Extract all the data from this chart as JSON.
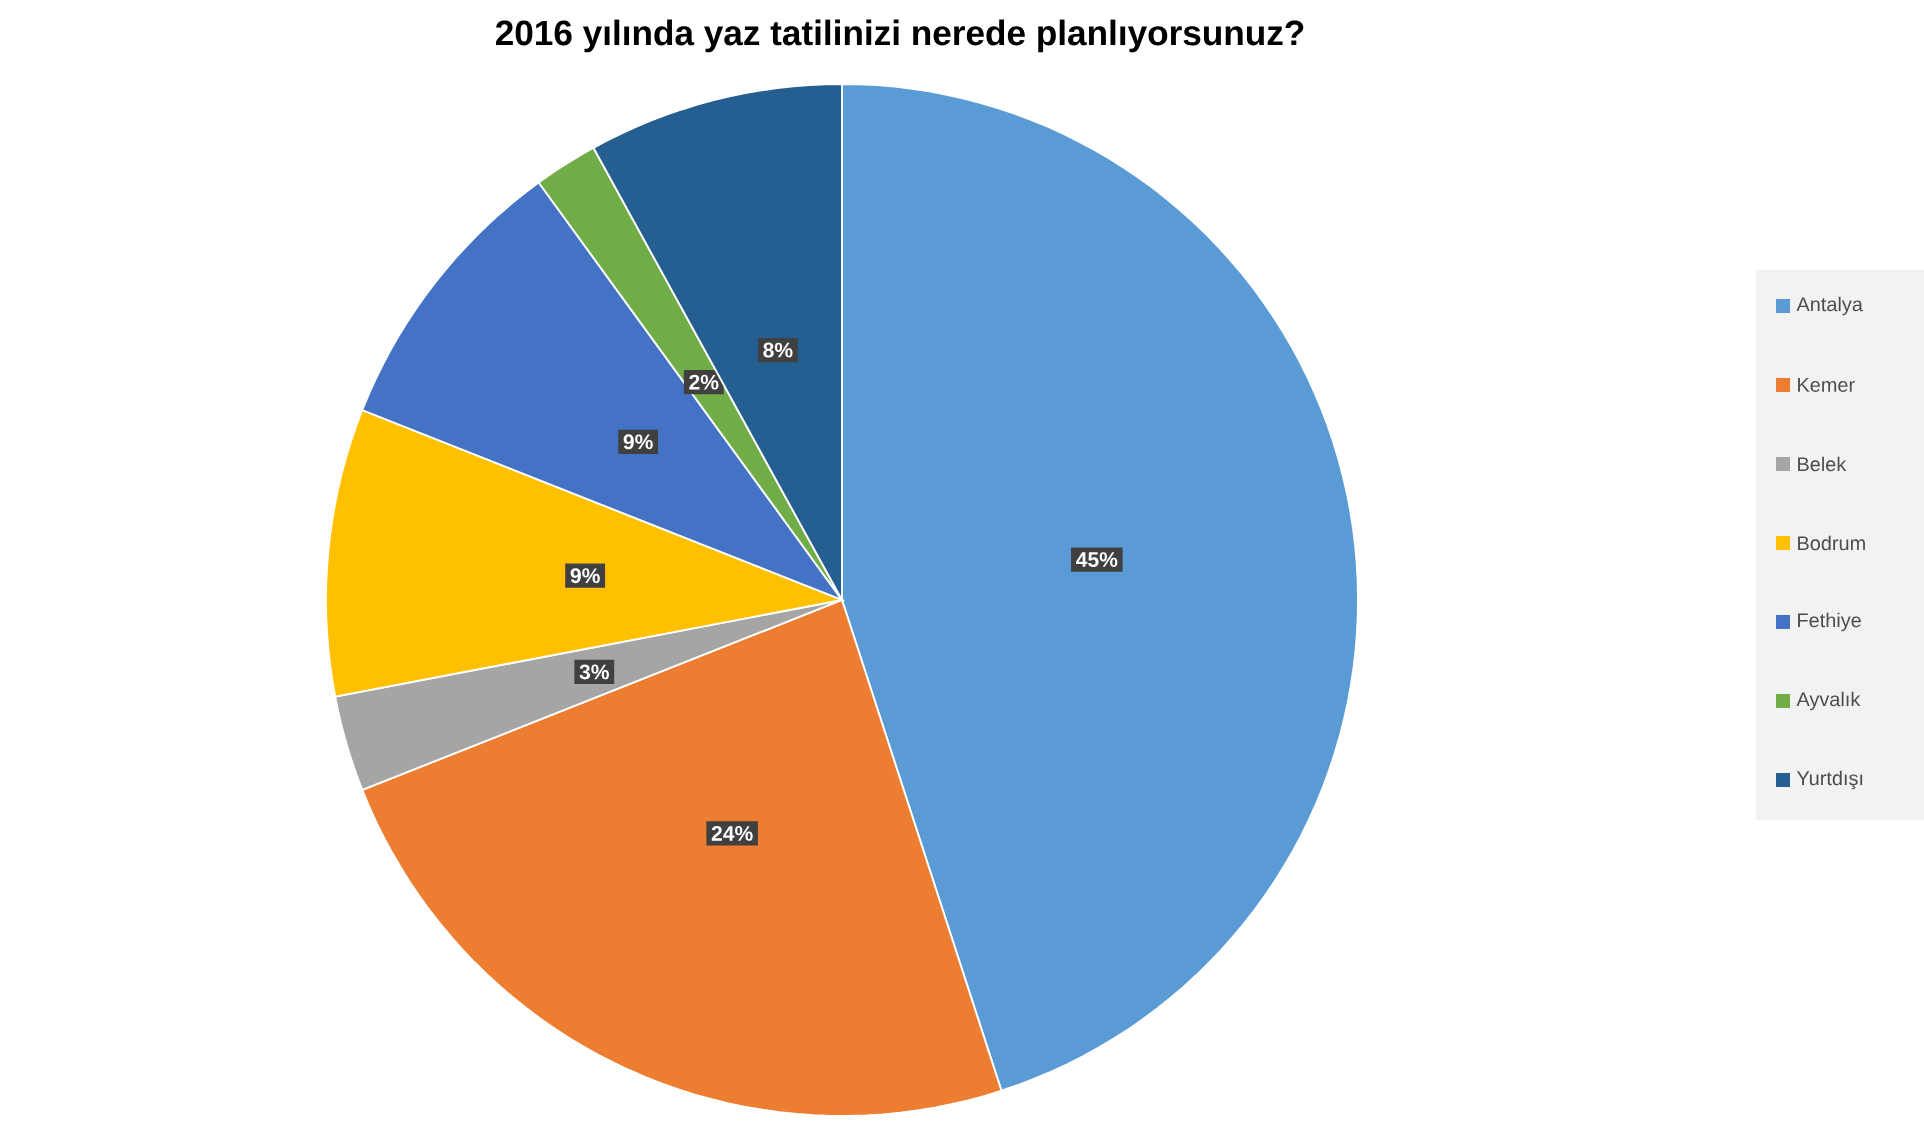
{
  "chart_data": {
    "type": "pie",
    "title": "2016 yılında yaz tatilinizi nerede planlıyorsunuz?",
    "categories": [
      "Antalya",
      "Kemer",
      "Belek",
      "Bodrum",
      "Fethiye",
      "Ayvalık",
      "Yurtdışı"
    ],
    "values": [
      45,
      24,
      3,
      9,
      9,
      2,
      8
    ],
    "value_labels": [
      "45%",
      "24%",
      "3%",
      "9%",
      "9%",
      "2%",
      "8%"
    ],
    "colors": [
      "#5b9bd5",
      "#ed7d31",
      "#a5a5a5",
      "#ffc000",
      "#4472c4",
      "#70ad47",
      "#255e91"
    ],
    "legend": "right"
  }
}
